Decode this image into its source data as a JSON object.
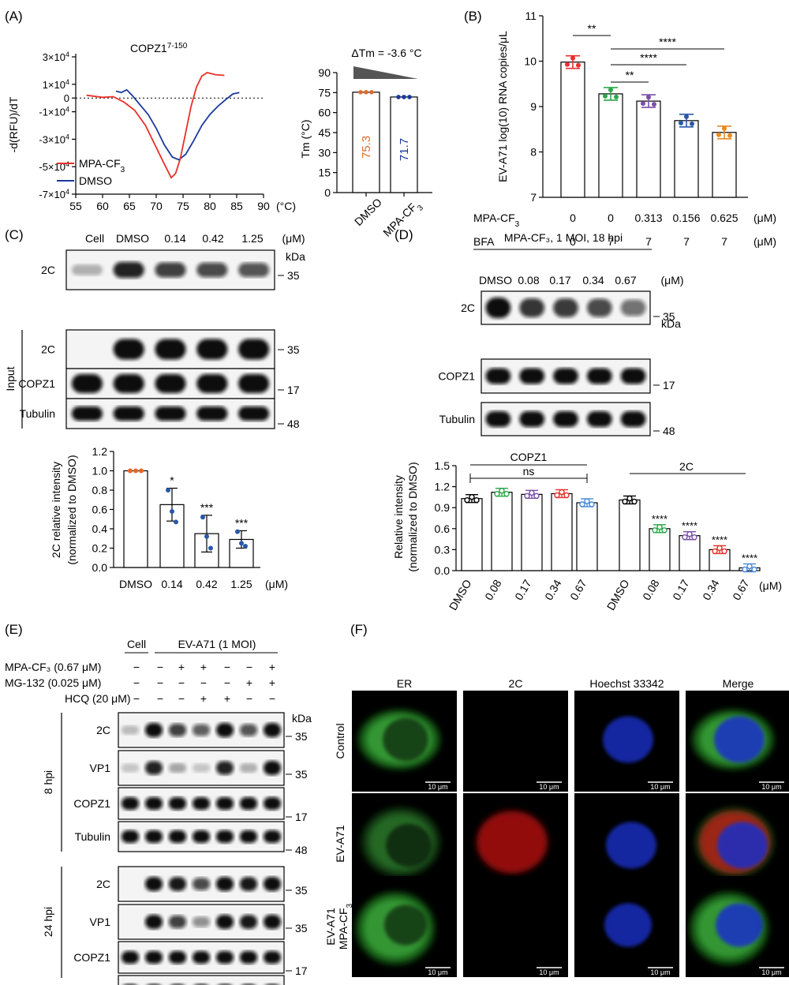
{
  "panels": {
    "A": {
      "label": "(A)",
      "curve_chart": {
        "title_main": "COPZ1",
        "title_sup": "7-150",
        "ylabel": "-d(RFU)/dT",
        "xunit": "(°C)",
        "xticks": [
          "55",
          "60",
          "65",
          "70",
          "75",
          "80",
          "85",
          "90"
        ],
        "yticks": [
          {
            "mant": "3×10",
            "exp": "4",
            "v": 30000
          },
          {
            "mant": "1×10",
            "exp": "4",
            "v": 10000
          },
          {
            "mant": "0",
            "exp": "",
            "v": 0
          },
          {
            "mant": "-1×10",
            "exp": "4",
            "v": -10000
          },
          {
            "mant": "-3×10",
            "exp": "4",
            "v": -30000
          },
          {
            "mant": "-5×10",
            "exp": "4",
            "v": -50000
          },
          {
            "mant": "-7×10",
            "exp": "4",
            "v": -70000
          }
        ],
        "legend": [
          {
            "name": "MPA-CF",
            "sub": "3",
            "color": "#e8302a"
          },
          {
            "name": "DMSO",
            "sub": "",
            "color": "#1a3a9c"
          }
        ]
      },
      "bar_chart": {
        "title": "ΔTm = -3.6 °C",
        "ylabel": "Tm (°C)",
        "yticks": [
          "0",
          "15",
          "30",
          "45",
          "60",
          "75",
          "90"
        ],
        "categories": [
          "DMSO",
          "MPA-CF3"
        ],
        "values": [
          75.3,
          71.7
        ],
        "value_labels": [
          "75.3",
          "71.7"
        ],
        "colors": [
          "#e06a2a",
          "#1a3a9c"
        ]
      }
    },
    "B": {
      "label": "(B)",
      "ylabel": "EV-A71 log(10) RNA copies/μL",
      "yticks": [
        "7",
        "8",
        "9",
        "10",
        "11"
      ],
      "row1_label": "MPA-CF3",
      "row1_values": [
        "0",
        "0",
        "0.313",
        "0.156",
        "0.625"
      ],
      "row2_label": "BFA",
      "row2_values": [
        "0",
        "7",
        "7",
        "7",
        "7"
      ],
      "unit": "(μM)",
      "values": [
        9.98,
        9.28,
        9.12,
        8.69,
        8.43
      ],
      "colors": [
        "#e8302a",
        "#2aa84a",
        "#7a4fa8",
        "#2a58a8",
        "#e88a20"
      ],
      "sig": [
        "**",
        "**",
        "****",
        "****"
      ]
    },
    "C": {
      "label": "(C)",
      "lane_labels": [
        "Cell",
        "DMSO",
        "0.14",
        "0.42",
        "1.25",
        "(μM)"
      ],
      "kda": "kDa",
      "blots": [
        {
          "name": "2C",
          "mw": "35"
        },
        {
          "name": "2C",
          "mw": "35"
        },
        {
          "name": "COPZ1",
          "mw": "17"
        },
        {
          "name": "Tubulin",
          "mw": "48"
        }
      ],
      "input_label": "Input",
      "chart": {
        "ylabel1": "2C relative intensity",
        "ylabel2": "(normalized to DMSO)",
        "yticks": [
          "0.0",
          "0.2",
          "0.4",
          "0.6",
          "0.8",
          "1.0",
          "1.2"
        ],
        "categories": [
          "DMSO",
          "0.14",
          "0.42",
          "1.25"
        ],
        "unit": "(μM)",
        "values": [
          1.0,
          0.65,
          0.35,
          0.29
        ],
        "sig": [
          "",
          "*",
          "***",
          "***"
        ]
      }
    },
    "D": {
      "label": "(D)",
      "header": "MPA-CF₃, 1 MOI, 18 hpi",
      "lane_labels": [
        "DMSO",
        "0.08",
        "0.17",
        "0.34",
        "0.67",
        "(μM)"
      ],
      "kda": "kDa",
      "blots": [
        {
          "name": "2C",
          "mw": "35"
        },
        {
          "name": "COPZ1",
          "mw": "17"
        },
        {
          "name": "Tubulin",
          "mw": "48"
        }
      ],
      "chart": {
        "ylabel1": "Relative intensity",
        "ylabel2": "(normalized to DMSO)",
        "yticks": [
          "0.0",
          "0.3",
          "0.6",
          "0.9",
          "1.2",
          "1.5"
        ],
        "group1": "COPZ1",
        "group2": "2C",
        "ns": "ns",
        "categories": [
          "DMSO",
          "0.08",
          "0.17",
          "0.34",
          "0.67"
        ],
        "unit": "(μM)",
        "copz1_values": [
          1.03,
          1.12,
          1.09,
          1.1,
          0.97
        ],
        "c2_values": [
          1.01,
          0.6,
          0.5,
          0.3,
          0.04
        ],
        "colors": [
          "#000000",
          "#2aa84a",
          "#7a4fa8",
          "#e8302a",
          "#4a8ad8"
        ],
        "sig": "****"
      }
    },
    "E": {
      "label": "(E)",
      "group_cell": "Cell",
      "group_virus": "EV-A71 (1 MOI)",
      "treatments": [
        {
          "label": "MPA-CF₃ (0.67 μM)",
          "signs": [
            "−",
            "−",
            "+",
            "+",
            "−",
            "−",
            "+"
          ]
        },
        {
          "label": "MG-132 (0.025 μM)",
          "signs": [
            "−",
            "−",
            "−",
            "−",
            "−",
            "+",
            "+"
          ]
        },
        {
          "label": "HCQ (20 μM)",
          "signs": [
            "−",
            "−",
            "−",
            "+",
            "+",
            "−",
            "−"
          ]
        }
      ],
      "kda": "kDa",
      "time1": "8 hpi",
      "time2": "24 hpi",
      "blots": [
        {
          "name": "2C",
          "mw": "35"
        },
        {
          "name": "VP1",
          "mw": "35"
        },
        {
          "name": "COPZ1",
          "mw": "17"
        },
        {
          "name": "Tubulin",
          "mw": "48"
        }
      ]
    },
    "F": {
      "label": "(F)",
      "columns": [
        "ER",
        "2C",
        "Hoechst 33342",
        "Merge"
      ],
      "rows": [
        "Control",
        "EV-A71",
        "EV-A71 MPA-CF3"
      ],
      "scale": "10 μm"
    }
  }
}
